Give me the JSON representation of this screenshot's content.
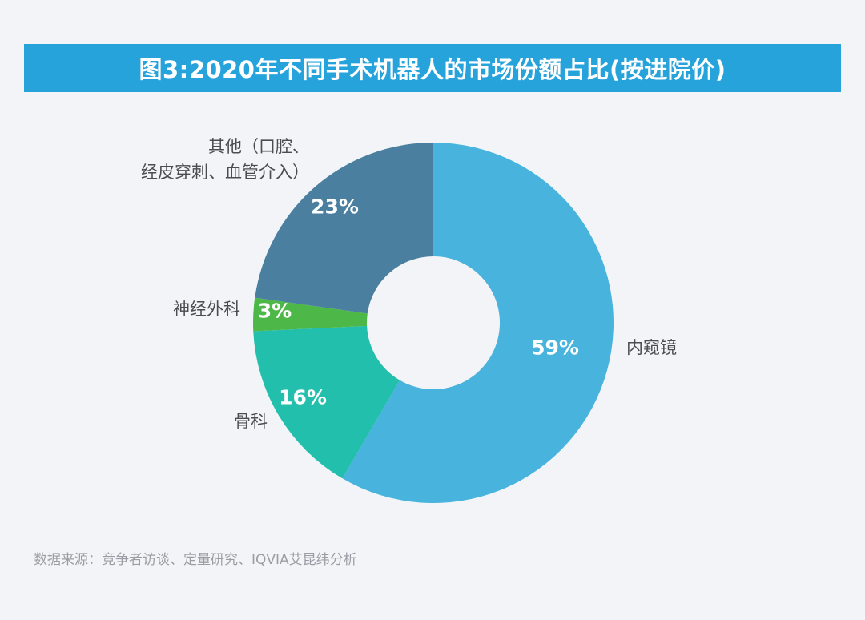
{
  "title": "图3:2020年不同手术机器人的市场份额占比(按进院价)",
  "source": "数据来源：竞争者访谈、定量研究、IQVIA艾昆纬分析",
  "chart_data": {
    "type": "pie",
    "donut": true,
    "start": "12 o'clock, clockwise",
    "categories": [
      "内窥镜",
      "骨科",
      "神经外科",
      "其他（口腔、经皮穿刺、血管介入）"
    ],
    "category_lines": [
      [
        "内窥镜"
      ],
      [
        "骨科"
      ],
      [
        "神经外科"
      ],
      [
        "其他（口腔、",
        "经皮穿刺、血管介入）"
      ]
    ],
    "values": [
      59,
      16,
      3,
      23
    ],
    "data_labels": [
      "59%",
      "16%",
      "3%",
      "23%"
    ],
    "colors": [
      "#48b3dd",
      "#22bfad",
      "#4db848",
      "#4a7fa0"
    ]
  }
}
